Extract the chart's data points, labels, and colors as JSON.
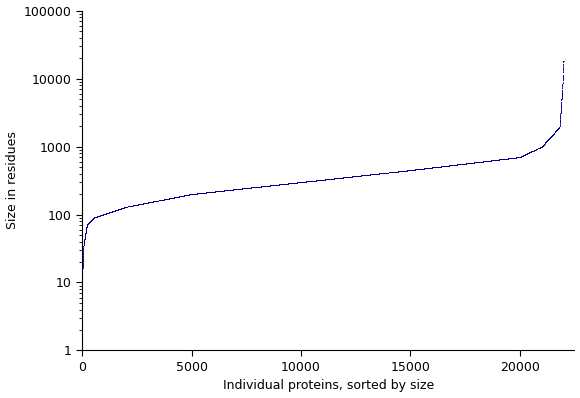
{
  "xlabel": "Individual proteins, sorted by size",
  "ylabel": "Size in residues",
  "line_color": "#00008B",
  "xlim": [
    0,
    22500
  ],
  "ylim": [
    1,
    100000
  ],
  "xticks": [
    0,
    5000,
    10000,
    15000,
    20000
  ],
  "yticks": [
    1,
    10,
    100,
    1000,
    10000,
    100000
  ],
  "n_proteins": 22000,
  "background_color": "#ffffff",
  "marker_size": 1.2,
  "linewidth": 1.8,
  "figsize": [
    5.8,
    3.98
  ],
  "dpi": 100
}
